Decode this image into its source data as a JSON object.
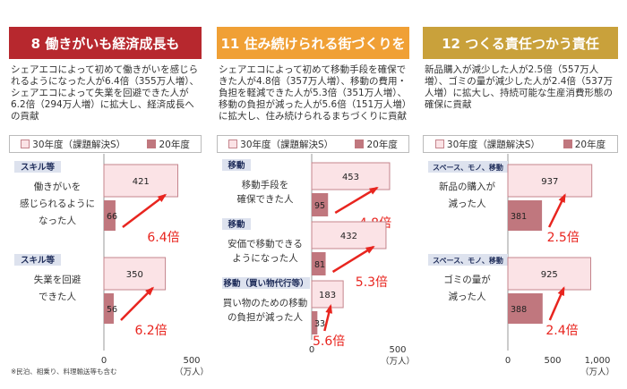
{
  "colors": {
    "header1": "#b7282e",
    "header2": "#f0a035",
    "header3": "#c9a13b",
    "bar30_fill": "#fbe3e6",
    "bar30_stroke": "#c4848c",
    "bar20_fill": "#c0777e",
    "tag_fill": "#dde2ee",
    "arrow": "#e8251f"
  },
  "legend": {
    "series30": "30年度（課題解決S）",
    "series20": "20年度"
  },
  "unit": "（万人）",
  "note": "※民泊、相乗り、料理輸送等も含む",
  "panels": [
    {
      "title": "8 働きがいも経済成長も",
      "desc": "シェアエコによって初めて働きがいを感じられるようになった人が6.4倍（355万人増）、シェアエコによって失業を回避できた人が6.2倍（294万人増）に拡大し、経済成長への貢献",
      "chart_data": {
        "type": "bar",
        "orientation": "horizontal",
        "categories": [
          "働きがいを感じられるようになった人",
          "失業を回避できた人"
        ],
        "tags": [
          "スキル等",
          "スキル等"
        ],
        "series": [
          {
            "name": "30年度（課題解決S）",
            "values": [
              421,
              350
            ]
          },
          {
            "name": "20年度",
            "values": [
              66,
              56
            ]
          }
        ],
        "ratios": [
          "6.4倍",
          "6.2倍"
        ],
        "xlim": [
          0,
          500
        ],
        "xticks": [
          "0",
          "500"
        ],
        "xunit": "（万人）"
      }
    },
    {
      "title": "11 住み続けられる街づくりを",
      "desc": "シェアエコによって初めて移動手段を確保できた人が4.8倍（357万人増）、移動の費用・負担を軽減できた人が5.3倍（351万人増）、移動の負担が減った人が5.6倍（151万人増）に拡大し、住み続けられるまちづくりに貢献",
      "chart_data": {
        "type": "bar",
        "orientation": "horizontal",
        "categories": [
          "移動手段を確保できた人",
          "安価で移動できるようになった人",
          "買い物のための移動の負担が減った人"
        ],
        "tags": [
          "移動",
          "移動",
          "移動（買い物代行等）"
        ],
        "series": [
          {
            "name": "30年度（課題解決S）",
            "values": [
              453,
              432,
              183
            ]
          },
          {
            "name": "20年度",
            "values": [
              95,
              81,
              33
            ]
          }
        ],
        "ratios": [
          "4.8倍",
          "5.3倍",
          "5.6倍"
        ],
        "xlim": [
          0,
          500
        ],
        "xticks": [
          "0",
          "500"
        ],
        "xunit": "（万人）"
      }
    },
    {
      "title": "12 つくる責任つかう責任",
      "desc": "新品購入が減少した人が2.5倍（557万人増）、ゴミの量が減少した人が2.4倍（537万人増）に拡大し、持続可能な生産消費形態の確保に貢献",
      "chart_data": {
        "type": "bar",
        "orientation": "horizontal",
        "categories": [
          "新品の購入が減った人",
          "ゴミの量が減った人"
        ],
        "tags": [
          "スペース、モノ、移動",
          "スペース、モノ、移動"
        ],
        "series": [
          {
            "name": "30年度（課題解決S）",
            "values": [
              937,
              925
            ]
          },
          {
            "name": "20年度",
            "values": [
              381,
              388
            ]
          }
        ],
        "ratios": [
          "2.5倍",
          "2.4倍"
        ],
        "xlim": [
          0,
          1000
        ],
        "xticks": [
          "0",
          "500",
          "1,000"
        ],
        "xunit": "（万人）"
      }
    }
  ]
}
